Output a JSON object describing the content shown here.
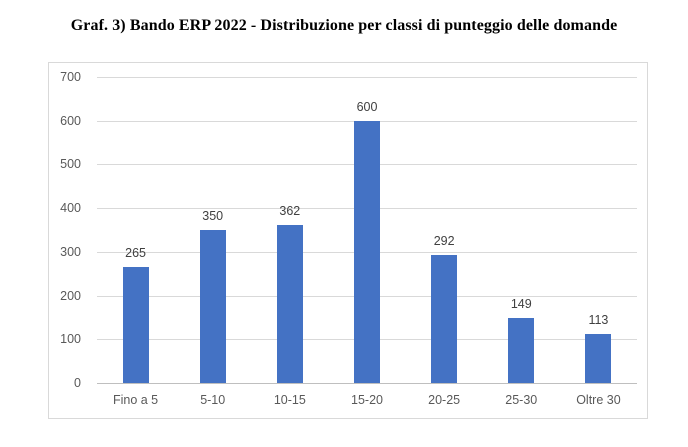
{
  "chart_data": {
    "type": "bar",
    "title": "Graf. 3) Bando ERP 2022 - Distribuzione per classi di punteggio delle domande",
    "categories": [
      "Fino a 5",
      "5-10",
      "10-15",
      "15-20",
      "20-25",
      "25-30",
      "Oltre 30"
    ],
    "values": [
      265,
      350,
      362,
      600,
      292,
      149,
      113
    ],
    "data_labels": [
      "265",
      "350",
      "362",
      "600",
      "292",
      "149",
      "113"
    ],
    "xlabel": "",
    "ylabel": "",
    "ylim": [
      0,
      700
    ],
    "ytick_step": 100,
    "ytick_labels": [
      "0",
      "100",
      "200",
      "300",
      "400",
      "500",
      "600",
      "700"
    ],
    "grid": true,
    "legend": "none",
    "colors": {
      "bar_fill": "#4472C4",
      "gridline": "#D9D9D9",
      "axis_line": "#BFBFBF",
      "axis_text": "#595959",
      "data_label_text": "#404040",
      "chart_border": "#D9D9D9",
      "title_text": "#000000",
      "background": "#FFFFFF"
    }
  }
}
